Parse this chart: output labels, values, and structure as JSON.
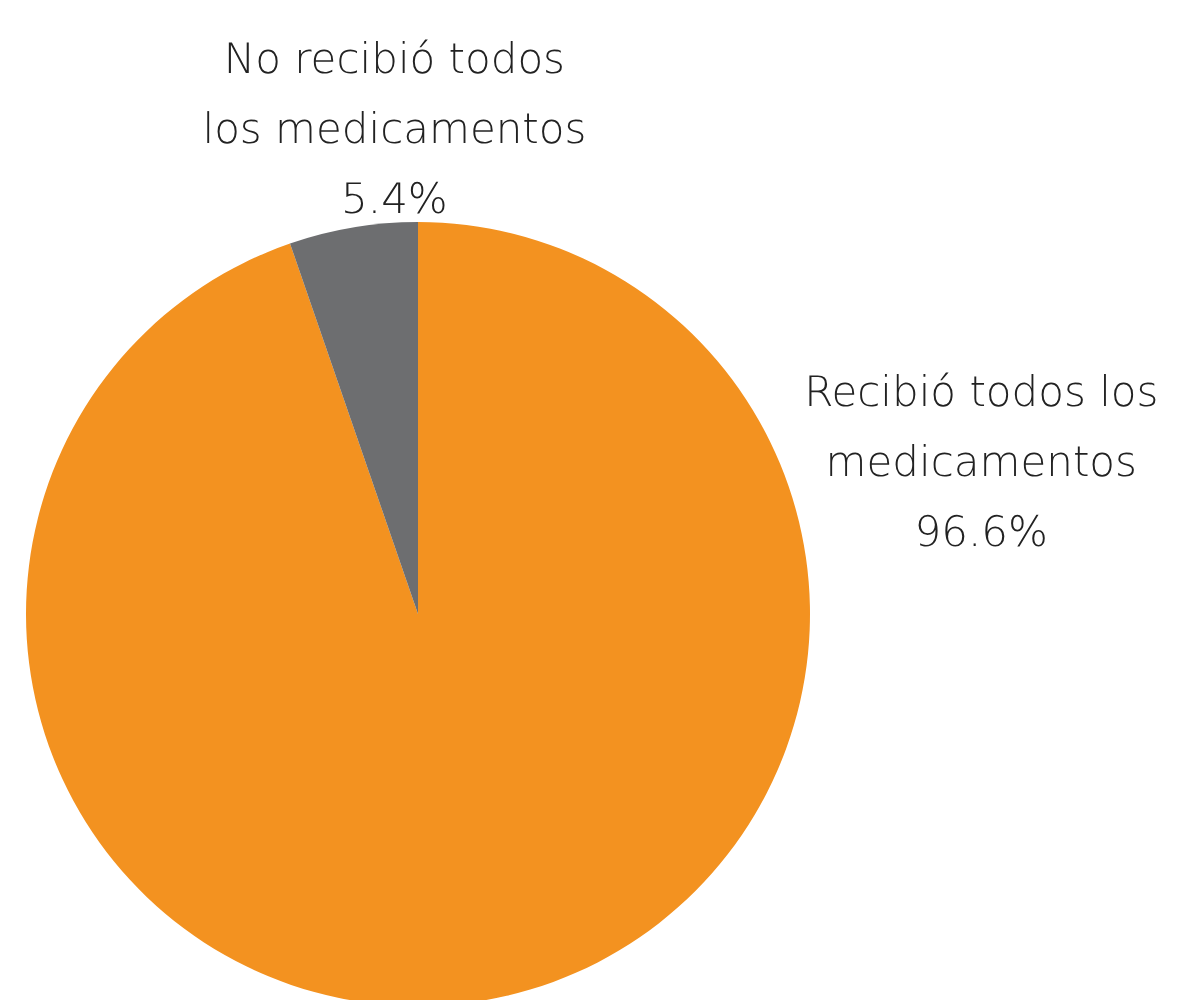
{
  "chart_data": {
    "type": "pie",
    "categories": [
      "Recibió todos los medicamentos",
      "No recibió todos los medicamentos"
    ],
    "values": [
      96.6,
      5.4
    ],
    "colors": [
      "#f39220",
      "#6d6e70"
    ],
    "value_labels": [
      "96.6%",
      "5.4%"
    ]
  }
}
